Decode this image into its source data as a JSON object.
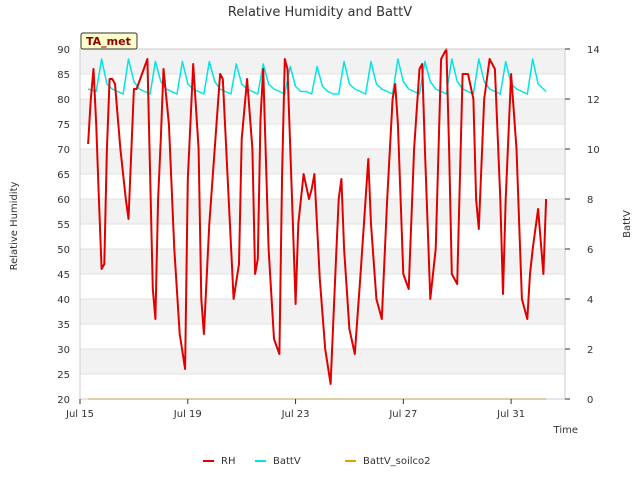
{
  "chart_data": {
    "type": "line",
    "title": "Relative Humidity and BattV",
    "site_tag": "TA_met",
    "xlabel": "Time",
    "ylabel_left": "Relative Humidity",
    "ylabel_right": "BattV",
    "ylim_left": [
      20,
      90
    ],
    "ylim_right": [
      0,
      14
    ],
    "yticks_left": [
      "20",
      "25",
      "30",
      "35",
      "40",
      "45",
      "50",
      "55",
      "60",
      "65",
      "70",
      "75",
      "80",
      "85",
      "90"
    ],
    "yticks_right": [
      "0",
      "2",
      "4",
      "6",
      "8",
      "10",
      "12",
      "14"
    ],
    "xlim_days": [
      15,
      33
    ],
    "xticks": [
      {
        "day": 15,
        "label": "Jul 15"
      },
      {
        "day": 19,
        "label": "Jul 19"
      },
      {
        "day": 23,
        "label": "Jul 23"
      },
      {
        "day": 27,
        "label": "Jul 27"
      },
      {
        "day": 31,
        "label": "Jul 31"
      }
    ],
    "grid": "horizontal bands",
    "legend": "bottom",
    "series": [
      {
        "name": "RH",
        "axis": "left",
        "color": "#e00000",
        "x": [
          15.3,
          15.4,
          15.5,
          15.6,
          15.7,
          15.8,
          15.9,
          16.0,
          16.1,
          16.2,
          16.3,
          16.5,
          16.7,
          16.8,
          17.0,
          17.1,
          17.3,
          17.5,
          17.6,
          17.7,
          17.8,
          17.9,
          18.0,
          18.1,
          18.3,
          18.5,
          18.7,
          18.9,
          19.0,
          19.2,
          19.4,
          19.5,
          19.6,
          19.8,
          20.0,
          20.2,
          20.3,
          20.5,
          20.7,
          20.9,
          21.0,
          21.2,
          21.4,
          21.5,
          21.6,
          21.7,
          21.8,
          22.0,
          22.2,
          22.4,
          22.5,
          22.6,
          22.7,
          22.9,
          23.0,
          23.1,
          23.3,
          23.5,
          23.6,
          23.7,
          23.9,
          24.1,
          24.3,
          24.5,
          24.6,
          24.7,
          24.8,
          25.0,
          25.2,
          25.4,
          25.6,
          25.7,
          25.8,
          26.0,
          26.2,
          26.4,
          26.6,
          26.7,
          26.8,
          27.0,
          27.2,
          27.4,
          27.6,
          27.7,
          27.8,
          28.0,
          28.2,
          28.4,
          28.6,
          28.7,
          28.8,
          29.0,
          29.2,
          29.4,
          29.6,
          29.7,
          29.8,
          30.0,
          30.2,
          30.4,
          30.6,
          30.7,
          30.8,
          31.0,
          31.2,
          31.4,
          31.6,
          31.7,
          31.8,
          32.0,
          32.2,
          32.3
        ],
        "y": [
          71,
          80,
          86,
          75,
          60,
          46,
          47,
          70,
          84,
          84,
          83,
          70,
          60,
          56,
          82,
          82,
          85,
          88,
          65,
          42,
          36,
          60,
          72,
          86,
          75,
          50,
          33,
          26,
          64,
          87,
          70,
          40,
          33,
          55,
          70,
          85,
          84,
          62,
          40,
          47,
          72,
          84,
          70,
          45,
          48,
          76,
          86,
          50,
          32,
          29,
          65,
          88,
          86,
          55,
          39,
          55,
          65,
          60,
          62,
          65,
          44,
          30,
          23,
          48,
          60,
          64,
          50,
          34,
          29,
          44,
          60,
          68,
          55,
          40,
          36,
          60,
          80,
          83,
          75,
          45,
          42,
          70,
          86,
          87,
          70,
          40,
          50,
          88,
          90,
          70,
          45,
          43,
          85,
          85,
          80,
          60,
          54,
          80,
          88,
          86,
          60,
          41,
          60,
          85,
          70,
          40,
          36,
          45,
          50,
          58,
          45,
          60
        ]
      },
      {
        "name": "BattV",
        "axis": "right",
        "color": "#00e5e5",
        "x": [
          15.3,
          15.6,
          15.8,
          16.0,
          16.2,
          16.4,
          16.6,
          16.8,
          17.0,
          17.2,
          17.4,
          17.6,
          17.8,
          18.0,
          18.2,
          18.4,
          18.6,
          18.8,
          19.0,
          19.2,
          19.4,
          19.6,
          19.8,
          20.0,
          20.2,
          20.4,
          20.6,
          20.8,
          21.0,
          21.2,
          21.4,
          21.6,
          21.8,
          22.0,
          22.2,
          22.4,
          22.6,
          22.8,
          23.0,
          23.2,
          23.4,
          23.6,
          23.8,
          24.0,
          24.2,
          24.4,
          24.6,
          24.8,
          25.0,
          25.2,
          25.4,
          25.6,
          25.8,
          26.0,
          26.2,
          26.4,
          26.6,
          26.8,
          27.0,
          27.2,
          27.4,
          27.6,
          27.8,
          28.0,
          28.2,
          28.4,
          28.6,
          28.8,
          29.0,
          29.2,
          29.4,
          29.6,
          29.8,
          30.0,
          30.2,
          30.4,
          30.6,
          30.8,
          31.0,
          31.2,
          31.4,
          31.6,
          31.8,
          32.0,
          32.2,
          32.3
        ],
        "y": [
          12.4,
          12.3,
          13.6,
          12.6,
          12.4,
          12.3,
          12.2,
          13.6,
          12.7,
          12.4,
          12.3,
          12.2,
          13.5,
          12.7,
          12.4,
          12.3,
          12.2,
          13.5,
          12.6,
          12.4,
          12.3,
          12.2,
          13.5,
          12.7,
          12.4,
          12.3,
          12.2,
          13.4,
          12.6,
          12.4,
          12.3,
          12.2,
          13.4,
          12.6,
          12.4,
          12.3,
          12.2,
          13.3,
          12.5,
          12.3,
          12.3,
          12.2,
          13.3,
          12.5,
          12.3,
          12.2,
          12.2,
          13.5,
          12.6,
          12.4,
          12.3,
          12.2,
          13.5,
          12.6,
          12.4,
          12.3,
          12.2,
          13.6,
          12.7,
          12.4,
          12.3,
          12.2,
          13.5,
          12.7,
          12.4,
          12.3,
          12.2,
          13.6,
          12.7,
          12.4,
          12.3,
          12.2,
          13.6,
          12.7,
          12.4,
          12.3,
          12.2,
          13.5,
          12.6,
          12.4,
          12.3,
          12.2,
          13.6,
          12.6,
          12.4,
          12.3
        ]
      },
      {
        "name": "BattV_soilco2",
        "axis": "right",
        "color": "#e0a000",
        "x": [
          15.3,
          32.3
        ],
        "y": [
          0,
          0
        ]
      }
    ]
  }
}
